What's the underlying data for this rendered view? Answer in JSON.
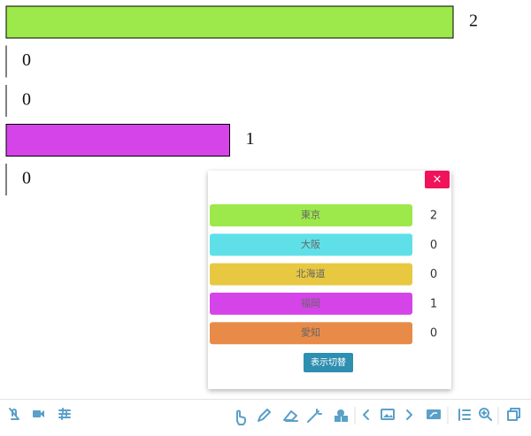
{
  "chart_data": {
    "type": "bar",
    "categories": [
      "東京",
      "大阪",
      "北海道",
      "福岡",
      "愛知"
    ],
    "values": [
      2,
      0,
      0,
      1,
      0
    ],
    "colors": [
      "#9de84a",
      "#5fe0e8",
      "#e8c840",
      "#d444e8",
      "#e88a48"
    ]
  },
  "popup": {
    "close": "×",
    "toggle_button": "表示切替"
  }
}
